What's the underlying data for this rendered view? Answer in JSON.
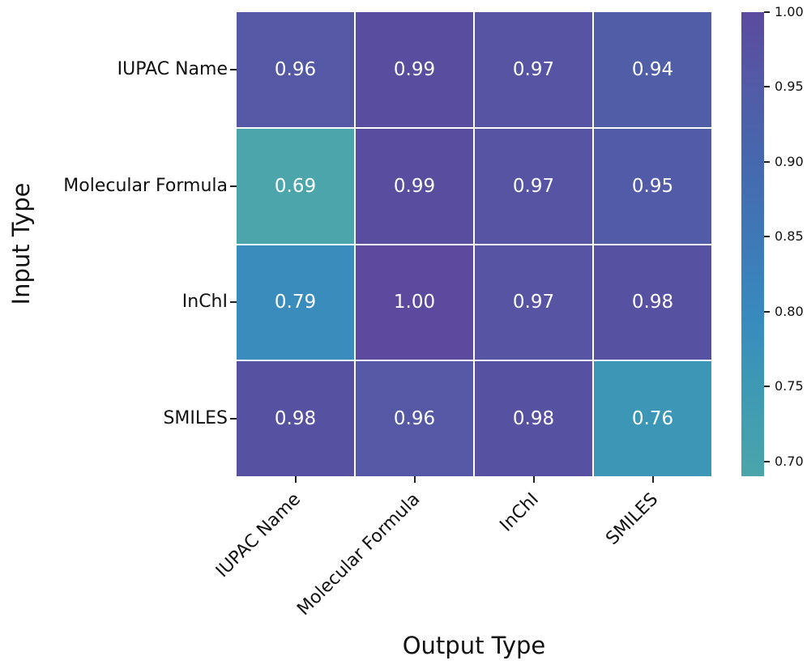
{
  "chart_data": {
    "type": "heatmap",
    "xlabel": "Output Type",
    "ylabel": "Input Type",
    "x_categories": [
      "IUPAC Name",
      "Molecular Formula",
      "InChI",
      "SMILES"
    ],
    "y_categories": [
      "IUPAC Name",
      "Molecular Formula",
      "InChI",
      "SMILES"
    ],
    "values": [
      [
        0.96,
        0.99,
        0.97,
        0.94
      ],
      [
        0.69,
        0.99,
        0.97,
        0.95
      ],
      [
        0.79,
        1.0,
        0.97,
        0.98
      ],
      [
        0.98,
        0.96,
        0.98,
        0.76
      ]
    ],
    "annotation_decimals": 2,
    "annotation_color": "#ffffff",
    "grid_line_color": "#ffffff",
    "colorbar": {
      "vmin": 0.69,
      "vmax": 1.0,
      "tick_values": [
        1.0,
        0.95,
        0.9,
        0.85,
        0.8,
        0.75,
        0.7
      ],
      "tick_labels": [
        "1.00",
        "0.95",
        "0.90",
        "0.85",
        "0.80",
        "0.75",
        "0.70"
      ]
    },
    "colormap_stops": [
      {
        "value": 0.69,
        "color": "#4BA5AA"
      },
      {
        "value": 0.75,
        "color": "#3D99B4"
      },
      {
        "value": 0.8,
        "color": "#3889BE"
      },
      {
        "value": 0.85,
        "color": "#3E78B7"
      },
      {
        "value": 0.9,
        "color": "#4668AE"
      },
      {
        "value": 0.95,
        "color": "#525BA7"
      },
      {
        "value": 1.0,
        "color": "#5B4A9E"
      }
    ]
  }
}
